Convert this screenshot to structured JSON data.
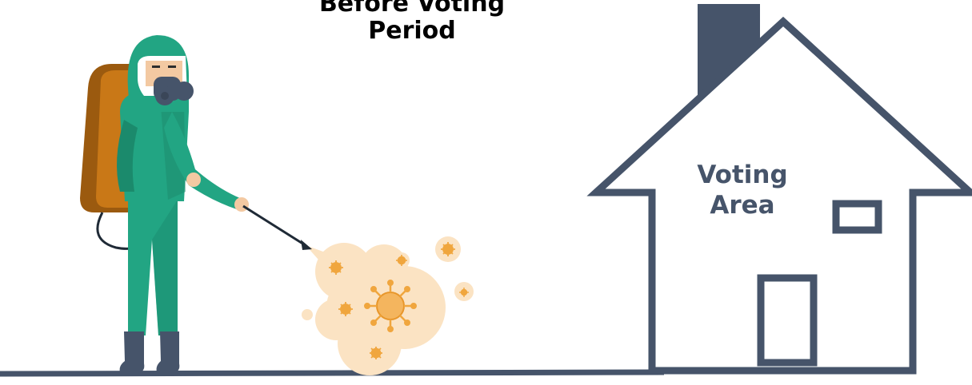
{
  "title": {
    "line1": "Before Voting",
    "line2": "Period"
  },
  "house": {
    "label_line1": "Voting",
    "label_line2": "Area"
  },
  "colors": {
    "slate": "#46546a",
    "suit": "#22a583",
    "suit_dark": "#1b8a6c",
    "tank": "#c97817",
    "tank_dark": "#9b5a0f",
    "mist": "#fbe3c3",
    "virus": "#f0a63e",
    "skin": "#f3c9a2"
  }
}
